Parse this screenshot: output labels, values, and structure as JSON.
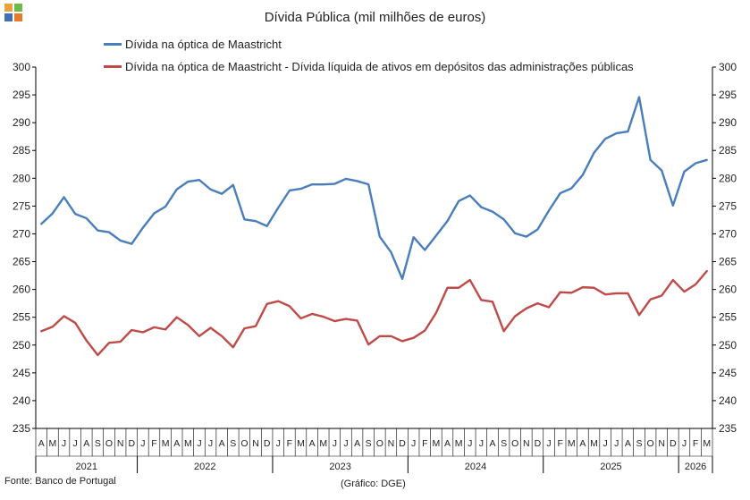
{
  "logo": {
    "colors": [
      "#e8a33c",
      "#6fb84a",
      "#3f6fb5",
      "#e87a2e"
    ]
  },
  "chart_data": {
    "type": "line",
    "title": "Dívida Pública (mil milhões de euros)",
    "ylim": [
      235,
      300
    ],
    "y_ticks": [
      235,
      240,
      245,
      250,
      255,
      260,
      265,
      270,
      275,
      280,
      285,
      290,
      295,
      300
    ],
    "grid": false,
    "legend_position": "top",
    "month_labels": [
      "A",
      "M",
      "J",
      "J",
      "A",
      "S",
      "O",
      "N",
      "D",
      "J",
      "F",
      "M",
      "A",
      "M",
      "J",
      "J",
      "A",
      "S",
      "O",
      "N",
      "D",
      "J",
      "F",
      "M",
      "A",
      "M",
      "J",
      "J",
      "A",
      "S",
      "O",
      "N",
      "D",
      "J",
      "F",
      "M",
      "A",
      "M",
      "J",
      "J",
      "A",
      "S",
      "O",
      "N",
      "D",
      "J",
      "F",
      "M",
      "A",
      "M",
      "J",
      "J",
      "A",
      "S",
      "O",
      "N",
      "D",
      "J",
      "F",
      "M"
    ],
    "years": [
      {
        "label": "2021",
        "count": 9
      },
      {
        "label": "2022",
        "count": 12
      },
      {
        "label": "2023",
        "count": 12
      },
      {
        "label": "2024",
        "count": 12
      },
      {
        "label": "2025",
        "count": 12
      },
      {
        "label": "2026",
        "count": 3
      }
    ],
    "series": [
      {
        "name": "Dívida na óptica de Maastricht",
        "color": "#4a7ebb",
        "values": [
          271.8,
          273.7,
          276.6,
          273.6,
          272.8,
          270.6,
          270.3,
          268.8,
          268.2,
          271.1,
          273.7,
          274.9,
          278.0,
          279.4,
          279.7,
          278.0,
          277.2,
          278.8,
          272.6,
          272.3,
          271.4,
          274.7,
          277.8,
          278.1,
          278.9,
          278.9,
          279.0,
          279.9,
          279.5,
          278.9,
          269.5,
          266.7,
          261.9,
          269.4,
          267.1,
          269.7,
          272.3,
          275.9,
          276.9,
          274.8,
          274.0,
          272.6,
          270.1,
          269.5,
          270.8,
          274.2,
          277.3,
          278.2,
          280.6,
          284.6,
          287.1,
          288.1,
          288.4,
          294.6,
          283.3,
          281.4,
          275.1,
          281.2,
          282.7,
          283.3
        ]
      },
      {
        "name": "Dívida na óptica de Maastricht - Dívida líquida de ativos em depósitos das administrações públicas",
        "color": "#be4b48",
        "values": [
          252.5,
          253.3,
          255.2,
          254.0,
          250.8,
          248.2,
          250.4,
          250.6,
          252.7,
          252.3,
          253.2,
          252.8,
          255.0,
          253.6,
          251.6,
          253.1,
          251.6,
          249.6,
          253.0,
          253.4,
          257.4,
          257.9,
          257.0,
          254.8,
          255.6,
          255.1,
          254.3,
          254.7,
          254.4,
          250.1,
          251.6,
          251.6,
          250.7,
          251.3,
          252.6,
          255.8,
          260.3,
          260.3,
          261.7,
          258.1,
          257.8,
          252.5,
          255.2,
          256.6,
          257.5,
          256.8,
          259.5,
          259.4,
          260.4,
          260.3,
          259.1,
          259.3,
          259.3,
          255.4,
          258.2,
          258.9,
          261.7,
          259.6,
          260.9,
          263.3
        ]
      }
    ]
  },
  "footer": {
    "source": "Fonte:  Banco de Portugal",
    "credit": "(Gráfico: DGE)"
  }
}
